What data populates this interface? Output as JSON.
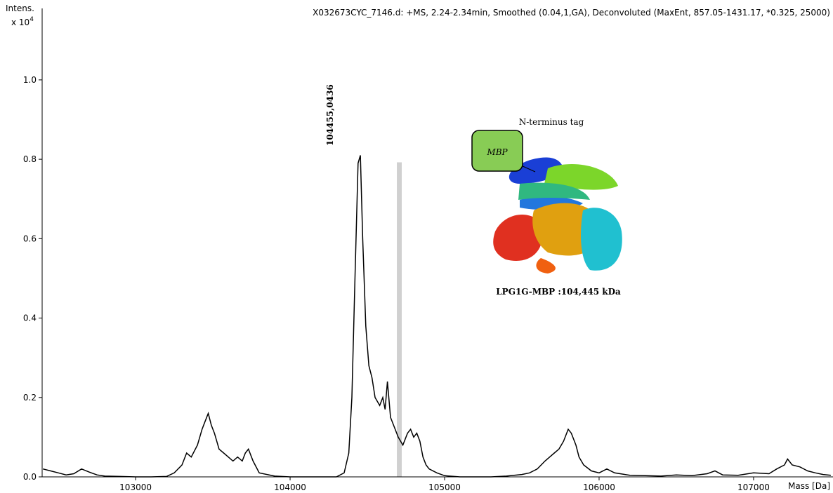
{
  "chart_data": {
    "type": "line",
    "title": "X032673CYC_7146.d: +MS, 2.24-2.34min, Smoothed (0.04,1,GA), Deconvoluted (MaxEnt, 857.05-1431.17, *0.325, 25000)",
    "y_label": "Intens.",
    "y_scale": "x 10",
    "y_scale_exp": "4",
    "x_label": "Mass [Da]",
    "annotations": {
      "peak": "104455,0436",
      "tag": "N-terminus tag",
      "box": "MBP",
      "protein": "LPG1G-MBP :104,445 kDa"
    },
    "color": "#000000",
    "xlim": [
      102395,
      107514
    ],
    "ylim": [
      0,
      1.18
    ],
    "xticks": [
      103000,
      104000,
      105000,
      106000,
      107000
    ],
    "yticks": [
      {
        "value": 0,
        "label": "0.0"
      },
      0.2,
      0.4,
      0.6,
      0.8,
      {
        "value": 1,
        "label": "1.0"
      }
    ],
    "x": [
      102400,
      102450,
      102500,
      102550,
      102600,
      102650,
      102700,
      102750,
      102800,
      102900,
      103000,
      103100,
      103200,
      103250,
      103300,
      103330,
      103360,
      103400,
      103430,
      103450,
      103470,
      103490,
      103510,
      103540,
      103570,
      103600,
      103630,
      103660,
      103690,
      103710,
      103730,
      103760,
      103800,
      103900,
      104000,
      104100,
      104200,
      104300,
      104350,
      104380,
      104400,
      104420,
      104440,
      104455,
      104470,
      104490,
      104510,
      104530,
      104550,
      104580,
      104600,
      104615,
      104630,
      104650,
      104670,
      104700,
      104730,
      104760,
      104780,
      104800,
      104820,
      104840,
      104860,
      104880,
      104900,
      104950,
      105000,
      105100,
      105200,
      105300,
      105400,
      105500,
      105550,
      105600,
      105650,
      105680,
      105710,
      105740,
      105770,
      105800,
      105820,
      105850,
      105870,
      105900,
      105950,
      106000,
      106050,
      106100,
      106200,
      106300,
      106400,
      106500,
      106600,
      106700,
      106750,
      106800,
      106900,
      107000,
      107100,
      107150,
      107200,
      107220,
      107250,
      107300,
      107350,
      107400,
      107450,
      107500
    ],
    "values": [
      0.02,
      0.015,
      0.01,
      0.005,
      0.008,
      0.02,
      0.012,
      0.005,
      0.002,
      0.001,
      0.0,
      0.0,
      0.001,
      0.01,
      0.03,
      0.06,
      0.05,
      0.08,
      0.12,
      0.14,
      0.16,
      0.13,
      0.11,
      0.07,
      0.06,
      0.05,
      0.04,
      0.05,
      0.04,
      0.06,
      0.07,
      0.04,
      0.01,
      0.002,
      0.0,
      0.0,
      0.0,
      0.0,
      0.01,
      0.06,
      0.2,
      0.5,
      0.79,
      0.81,
      0.6,
      0.38,
      0.28,
      0.25,
      0.2,
      0.18,
      0.2,
      0.17,
      0.24,
      0.15,
      0.13,
      0.1,
      0.08,
      0.11,
      0.12,
      0.1,
      0.11,
      0.09,
      0.05,
      0.03,
      0.02,
      0.01,
      0.003,
      0.0,
      0.0,
      0.0,
      0.002,
      0.006,
      0.01,
      0.02,
      0.04,
      0.05,
      0.06,
      0.07,
      0.09,
      0.12,
      0.11,
      0.08,
      0.05,
      0.03,
      0.015,
      0.01,
      0.02,
      0.01,
      0.004,
      0.003,
      0.002,
      0.005,
      0.003,
      0.008,
      0.015,
      0.005,
      0.004,
      0.01,
      0.008,
      0.02,
      0.03,
      0.045,
      0.03,
      0.025,
      0.015,
      0.01,
      0.006,
      0.004
    ]
  }
}
